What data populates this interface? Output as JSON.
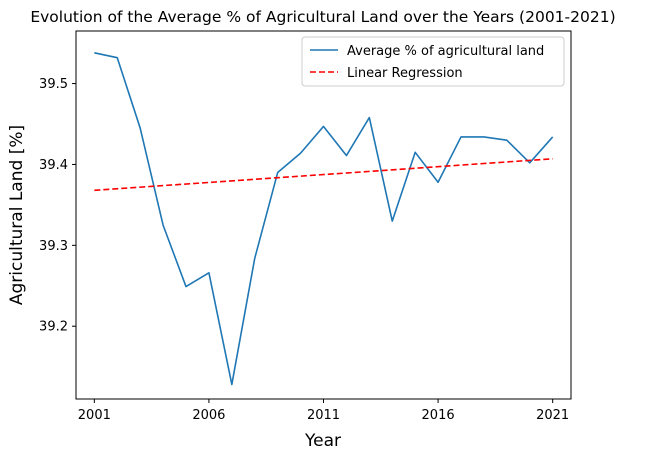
{
  "chart_data": {
    "type": "line",
    "title": "Evolution of the Average % of Agricultural Land over the Years (2001-2021)",
    "xlabel": "Year",
    "ylabel": "Agricultural Land [%]",
    "xlim": [
      2000.2,
      2021.8
    ],
    "ylim": [
      39.11,
      39.565
    ],
    "xticks": [
      2001,
      2006,
      2011,
      2016,
      2021
    ],
    "xtick_labels": [
      "2001",
      "2006",
      "2011",
      "2016",
      "2021"
    ],
    "yticks": [
      39.2,
      39.3,
      39.4,
      39.5
    ],
    "ytick_labels": [
      "39.2",
      "39.3",
      "39.4",
      "39.5"
    ],
    "grid": false,
    "legend_position": "top-right",
    "series": [
      {
        "name": "Average % of agricultural land",
        "color": "#1f77b4",
        "style": "solid",
        "x": [
          2001,
          2002,
          2003,
          2004,
          2005,
          2006,
          2007,
          2008,
          2009,
          2010,
          2011,
          2012,
          2013,
          2014,
          2015,
          2016,
          2017,
          2018,
          2019,
          2020,
          2021
        ],
        "y": [
          39.538,
          39.532,
          39.445,
          39.325,
          39.249,
          39.266,
          39.128,
          39.284,
          39.39,
          39.414,
          39.447,
          39.411,
          39.458,
          39.33,
          39.415,
          39.378,
          39.434,
          39.434,
          39.43,
          39.402,
          39.434
        ]
      },
      {
        "name": "Linear Regression",
        "color": "#ff0000",
        "style": "dashed",
        "x": [
          2001,
          2021
        ],
        "y": [
          39.368,
          39.407
        ]
      }
    ]
  }
}
